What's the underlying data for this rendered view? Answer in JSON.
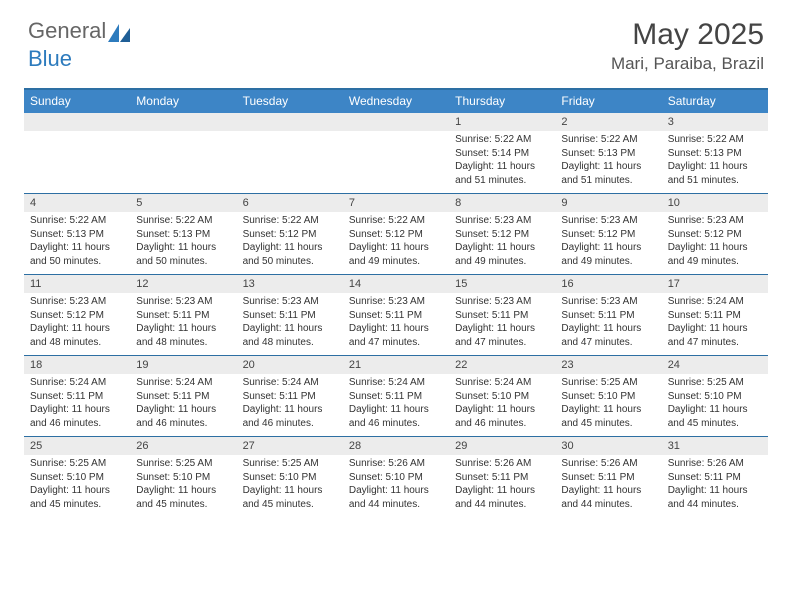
{
  "logo": {
    "text1": "General",
    "text2": "Blue"
  },
  "title": "May 2025",
  "location": "Mari, Paraiba, Brazil",
  "colors": {
    "header_bg": "#3d85c6",
    "header_text": "#ffffff",
    "strip_bg": "#ececec",
    "rule": "#2d6fa3",
    "logo_blue": "#2d7bbd"
  },
  "dow": [
    "Sunday",
    "Monday",
    "Tuesday",
    "Wednesday",
    "Thursday",
    "Friday",
    "Saturday"
  ],
  "weeks": [
    [
      {
        "n": "",
        "sr": "",
        "ss": "",
        "dl": ""
      },
      {
        "n": "",
        "sr": "",
        "ss": "",
        "dl": ""
      },
      {
        "n": "",
        "sr": "",
        "ss": "",
        "dl": ""
      },
      {
        "n": "",
        "sr": "",
        "ss": "",
        "dl": ""
      },
      {
        "n": "1",
        "sr": "Sunrise: 5:22 AM",
        "ss": "Sunset: 5:14 PM",
        "dl": "Daylight: 11 hours and 51 minutes."
      },
      {
        "n": "2",
        "sr": "Sunrise: 5:22 AM",
        "ss": "Sunset: 5:13 PM",
        "dl": "Daylight: 11 hours and 51 minutes."
      },
      {
        "n": "3",
        "sr": "Sunrise: 5:22 AM",
        "ss": "Sunset: 5:13 PM",
        "dl": "Daylight: 11 hours and 51 minutes."
      }
    ],
    [
      {
        "n": "4",
        "sr": "Sunrise: 5:22 AM",
        "ss": "Sunset: 5:13 PM",
        "dl": "Daylight: 11 hours and 50 minutes."
      },
      {
        "n": "5",
        "sr": "Sunrise: 5:22 AM",
        "ss": "Sunset: 5:13 PM",
        "dl": "Daylight: 11 hours and 50 minutes."
      },
      {
        "n": "6",
        "sr": "Sunrise: 5:22 AM",
        "ss": "Sunset: 5:12 PM",
        "dl": "Daylight: 11 hours and 50 minutes."
      },
      {
        "n": "7",
        "sr": "Sunrise: 5:22 AM",
        "ss": "Sunset: 5:12 PM",
        "dl": "Daylight: 11 hours and 49 minutes."
      },
      {
        "n": "8",
        "sr": "Sunrise: 5:23 AM",
        "ss": "Sunset: 5:12 PM",
        "dl": "Daylight: 11 hours and 49 minutes."
      },
      {
        "n": "9",
        "sr": "Sunrise: 5:23 AM",
        "ss": "Sunset: 5:12 PM",
        "dl": "Daylight: 11 hours and 49 minutes."
      },
      {
        "n": "10",
        "sr": "Sunrise: 5:23 AM",
        "ss": "Sunset: 5:12 PM",
        "dl": "Daylight: 11 hours and 49 minutes."
      }
    ],
    [
      {
        "n": "11",
        "sr": "Sunrise: 5:23 AM",
        "ss": "Sunset: 5:12 PM",
        "dl": "Daylight: 11 hours and 48 minutes."
      },
      {
        "n": "12",
        "sr": "Sunrise: 5:23 AM",
        "ss": "Sunset: 5:11 PM",
        "dl": "Daylight: 11 hours and 48 minutes."
      },
      {
        "n": "13",
        "sr": "Sunrise: 5:23 AM",
        "ss": "Sunset: 5:11 PM",
        "dl": "Daylight: 11 hours and 48 minutes."
      },
      {
        "n": "14",
        "sr": "Sunrise: 5:23 AM",
        "ss": "Sunset: 5:11 PM",
        "dl": "Daylight: 11 hours and 47 minutes."
      },
      {
        "n": "15",
        "sr": "Sunrise: 5:23 AM",
        "ss": "Sunset: 5:11 PM",
        "dl": "Daylight: 11 hours and 47 minutes."
      },
      {
        "n": "16",
        "sr": "Sunrise: 5:23 AM",
        "ss": "Sunset: 5:11 PM",
        "dl": "Daylight: 11 hours and 47 minutes."
      },
      {
        "n": "17",
        "sr": "Sunrise: 5:24 AM",
        "ss": "Sunset: 5:11 PM",
        "dl": "Daylight: 11 hours and 47 minutes."
      }
    ],
    [
      {
        "n": "18",
        "sr": "Sunrise: 5:24 AM",
        "ss": "Sunset: 5:11 PM",
        "dl": "Daylight: 11 hours and 46 minutes."
      },
      {
        "n": "19",
        "sr": "Sunrise: 5:24 AM",
        "ss": "Sunset: 5:11 PM",
        "dl": "Daylight: 11 hours and 46 minutes."
      },
      {
        "n": "20",
        "sr": "Sunrise: 5:24 AM",
        "ss": "Sunset: 5:11 PM",
        "dl": "Daylight: 11 hours and 46 minutes."
      },
      {
        "n": "21",
        "sr": "Sunrise: 5:24 AM",
        "ss": "Sunset: 5:11 PM",
        "dl": "Daylight: 11 hours and 46 minutes."
      },
      {
        "n": "22",
        "sr": "Sunrise: 5:24 AM",
        "ss": "Sunset: 5:10 PM",
        "dl": "Daylight: 11 hours and 46 minutes."
      },
      {
        "n": "23",
        "sr": "Sunrise: 5:25 AM",
        "ss": "Sunset: 5:10 PM",
        "dl": "Daylight: 11 hours and 45 minutes."
      },
      {
        "n": "24",
        "sr": "Sunrise: 5:25 AM",
        "ss": "Sunset: 5:10 PM",
        "dl": "Daylight: 11 hours and 45 minutes."
      }
    ],
    [
      {
        "n": "25",
        "sr": "Sunrise: 5:25 AM",
        "ss": "Sunset: 5:10 PM",
        "dl": "Daylight: 11 hours and 45 minutes."
      },
      {
        "n": "26",
        "sr": "Sunrise: 5:25 AM",
        "ss": "Sunset: 5:10 PM",
        "dl": "Daylight: 11 hours and 45 minutes."
      },
      {
        "n": "27",
        "sr": "Sunrise: 5:25 AM",
        "ss": "Sunset: 5:10 PM",
        "dl": "Daylight: 11 hours and 45 minutes."
      },
      {
        "n": "28",
        "sr": "Sunrise: 5:26 AM",
        "ss": "Sunset: 5:10 PM",
        "dl": "Daylight: 11 hours and 44 minutes."
      },
      {
        "n": "29",
        "sr": "Sunrise: 5:26 AM",
        "ss": "Sunset: 5:11 PM",
        "dl": "Daylight: 11 hours and 44 minutes."
      },
      {
        "n": "30",
        "sr": "Sunrise: 5:26 AM",
        "ss": "Sunset: 5:11 PM",
        "dl": "Daylight: 11 hours and 44 minutes."
      },
      {
        "n": "31",
        "sr": "Sunrise: 5:26 AM",
        "ss": "Sunset: 5:11 PM",
        "dl": "Daylight: 11 hours and 44 minutes."
      }
    ]
  ]
}
